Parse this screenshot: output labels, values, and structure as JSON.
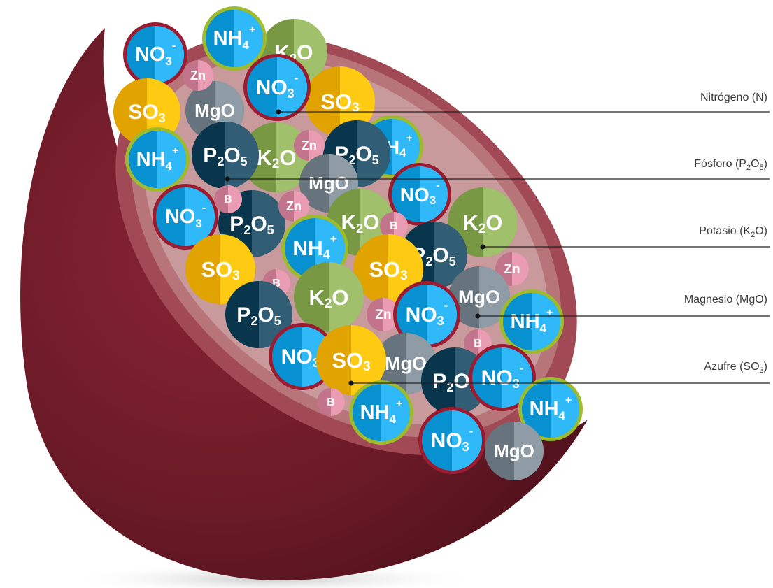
{
  "colors": {
    "shell_dark": "#5f1521",
    "shell_mid": "#7d1f2e",
    "rim": "#a24d56",
    "inner": "#b46f74",
    "nitrate": "#1ea7e6",
    "nitrate_ring": "#9b1c30",
    "ammonium": "#1ea7e6",
    "ammonium_ring": "#9dbb2d",
    "potassium": "#8fae5a",
    "phosphorus": "#1f4b63",
    "magnesium": "#7d8a94",
    "sulfur": "#f6b900",
    "micro": "#d88aa0"
  },
  "nutrients": [
    {
      "id": "n",
      "name": "Nitrógeno (N)"
    },
    {
      "id": "p",
      "name_pre": "Fósforo (P",
      "sub1": "2",
      "mid": "O",
      "sub2": "5",
      "post": ")"
    },
    {
      "id": "k",
      "name_pre": "Potasio (K",
      "sub1": "2",
      "mid": "O)"
    },
    {
      "id": "mg",
      "name": "Magnesio (MgO)"
    },
    {
      "id": "s",
      "name_pre": "Azufre (SO",
      "sub1": "3",
      "post": ")"
    }
  ],
  "ball_labels": {
    "nitrate": {
      "main": "NO",
      "sub": "3",
      "sup": "-"
    },
    "ammonium": {
      "main": "NH",
      "sub": "4",
      "sup": "+"
    },
    "potassium": {
      "main": "K",
      "sub": "2",
      "tail": "O"
    },
    "phosphorus": {
      "main": "P",
      "sub": "2",
      "mid": "O",
      "sub2": "5"
    },
    "sulfur": {
      "main": "SO",
      "sub": "3"
    },
    "magnesium": {
      "main": "MgO"
    },
    "zinc": {
      "main": "Zn"
    },
    "boron": {
      "main": "B"
    }
  }
}
